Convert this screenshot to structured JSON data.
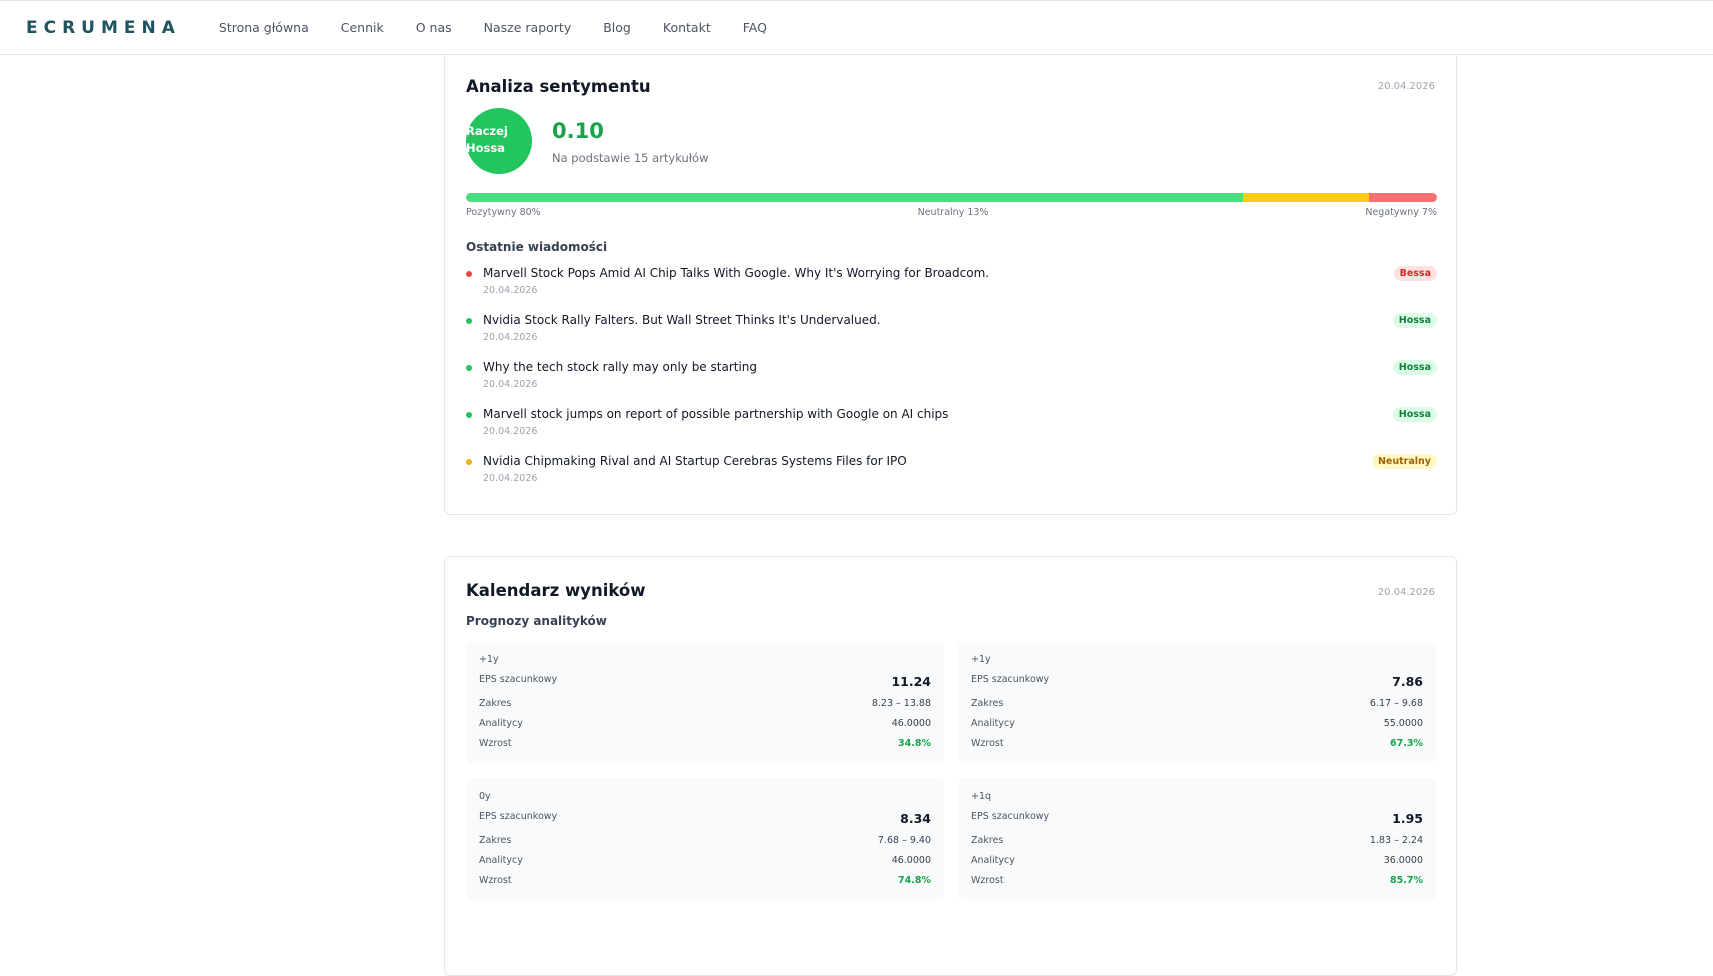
{
  "nav": {
    "brand": "ECRUMENA",
    "links": [
      "Strona główna",
      "Cennik",
      "O nas",
      "Nasze raporty",
      "Blog",
      "Kontakt",
      "FAQ"
    ]
  },
  "sentiment": {
    "title": "Analiza sentymentu",
    "date": "20.04.2026",
    "badge": "Raczej Hossa",
    "score": "0.10",
    "basis": "Na podstawie 15 artykułów",
    "segments": [
      {
        "label": "Pozytywny 80%",
        "value": 80,
        "color": "#4ade80"
      },
      {
        "label": "Neutralny 13%",
        "value": 13,
        "color": "#facc15"
      },
      {
        "label": "Negatywny 7%",
        "value": 7,
        "color": "#f87171"
      }
    ],
    "news_title": "Ostatnie wiadomości",
    "news": [
      {
        "title": "Marvell Stock Pops Amid AI Chip Talks With Google. Why It's Worrying for Broadcom.",
        "date": "20.04.2026",
        "tag": "Bessa",
        "color": "#ef4444"
      },
      {
        "title": "Nvidia Stock Rally Falters. But Wall Street Thinks It's Undervalued.",
        "date": "20.04.2026",
        "tag": "Hossa",
        "color": "#22c55e"
      },
      {
        "title": "Why the tech stock rally may only be starting",
        "date": "20.04.2026",
        "tag": "Hossa",
        "color": "#22c55e"
      },
      {
        "title": "Marvell stock jumps on report of possible partnership with Google on AI chips",
        "date": "20.04.2026",
        "tag": "Hossa",
        "color": "#22c55e"
      },
      {
        "title": "Nvidia Chipmaking Rival and AI Startup Cerebras Systems Files for IPO",
        "date": "20.04.2026",
        "tag": "Neutralny",
        "color": "#eab308"
      }
    ]
  },
  "calendar": {
    "title": "Kalendarz wyników",
    "date": "20.04.2026",
    "subtitle": "Prognozy analityków",
    "cards": [
      {
        "period": "+1y",
        "eps_label": "EPS szacunkowy",
        "eps": "11.24",
        "rows": [
          [
            "Zakres",
            "8.23 – 13.88"
          ],
          [
            "Analitycy",
            "46.0000"
          ],
          [
            "Wzrost",
            "34.8%"
          ]
        ]
      },
      {
        "period": "+1y",
        "eps_label": "EPS szacunkowy",
        "eps": "7.86",
        "rows": [
          [
            "Zakres",
            "6.17 – 9.68"
          ],
          [
            "Analitycy",
            "55.0000"
          ],
          [
            "Wzrost",
            "67.3%"
          ]
        ]
      },
      {
        "period": "0y",
        "eps_label": "EPS szacunkowy",
        "eps": "8.34",
        "rows": [
          [
            "Zakres",
            "7.68 – 9.40"
          ],
          [
            "Analitycy",
            "46.0000"
          ],
          [
            "Wzrost",
            "74.8%"
          ]
        ]
      },
      {
        "period": "+1q",
        "eps_label": "EPS szacunkowy",
        "eps": "1.95",
        "rows": [
          [
            "Zakres",
            "1.83 – 2.24"
          ],
          [
            "Analitycy",
            "36.0000"
          ],
          [
            "Wzrost",
            "85.7%"
          ]
        ]
      }
    ]
  }
}
